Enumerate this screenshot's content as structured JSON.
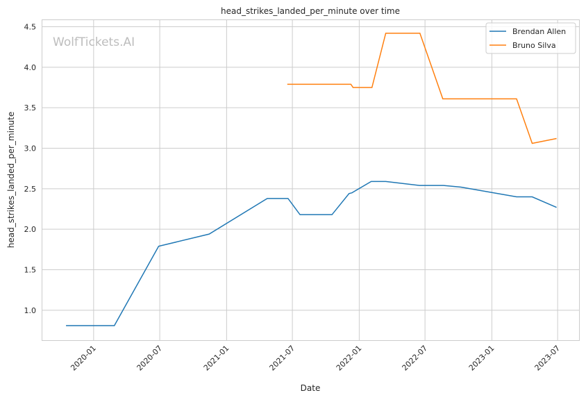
{
  "chart_data": {
    "type": "line",
    "title": "head_strikes_landed_per_minute over time",
    "xlabel": "Date",
    "ylabel": "head_strikes_landed_per_minute",
    "watermark": "WolfTickets.AI",
    "xlim": [
      "2019-08-11",
      "2023-08-29"
    ],
    "ylim": [
      0.63,
      4.59
    ],
    "xticks": [
      "2020-01",
      "2020-07",
      "2021-01",
      "2021-07",
      "2022-01",
      "2022-07",
      "2023-01",
      "2023-07"
    ],
    "yticks": [
      "1.0",
      "1.5",
      "2.0",
      "2.5",
      "3.0",
      "3.5",
      "4.0",
      "4.5"
    ],
    "grid": true,
    "legend_position": "top-right",
    "series": [
      {
        "name": "Brendan Allen",
        "color": "#1f77b4",
        "points": [
          [
            "2019-10-17",
            0.81
          ],
          [
            "2020-02-27",
            0.81
          ],
          [
            "2020-06-28",
            1.79
          ],
          [
            "2020-11-14",
            1.94
          ],
          [
            "2021-04-23",
            2.38
          ],
          [
            "2021-06-19",
            2.38
          ],
          [
            "2021-07-22",
            2.18
          ],
          [
            "2021-10-18",
            2.18
          ],
          [
            "2021-12-04",
            2.44
          ],
          [
            "2021-12-12",
            2.45
          ],
          [
            "2022-02-03",
            2.59
          ],
          [
            "2022-03-15",
            2.59
          ],
          [
            "2022-06-16",
            2.54
          ],
          [
            "2022-08-21",
            2.54
          ],
          [
            "2022-10-08",
            2.52
          ],
          [
            "2023-03-10",
            2.4
          ],
          [
            "2023-04-22",
            2.4
          ],
          [
            "2023-06-28",
            2.27
          ]
        ]
      },
      {
        "name": "Bruno Silva",
        "color": "#ff7f0e",
        "points": [
          [
            "2021-06-17",
            3.79
          ],
          [
            "2021-12-09",
            3.79
          ],
          [
            "2021-12-15",
            3.75
          ],
          [
            "2022-02-05",
            3.75
          ],
          [
            "2022-03-15",
            4.42
          ],
          [
            "2022-06-17",
            4.42
          ],
          [
            "2022-08-19",
            3.61
          ],
          [
            "2023-03-10",
            3.61
          ],
          [
            "2023-04-22",
            3.06
          ],
          [
            "2023-06-28",
            3.12
          ]
        ]
      }
    ]
  }
}
